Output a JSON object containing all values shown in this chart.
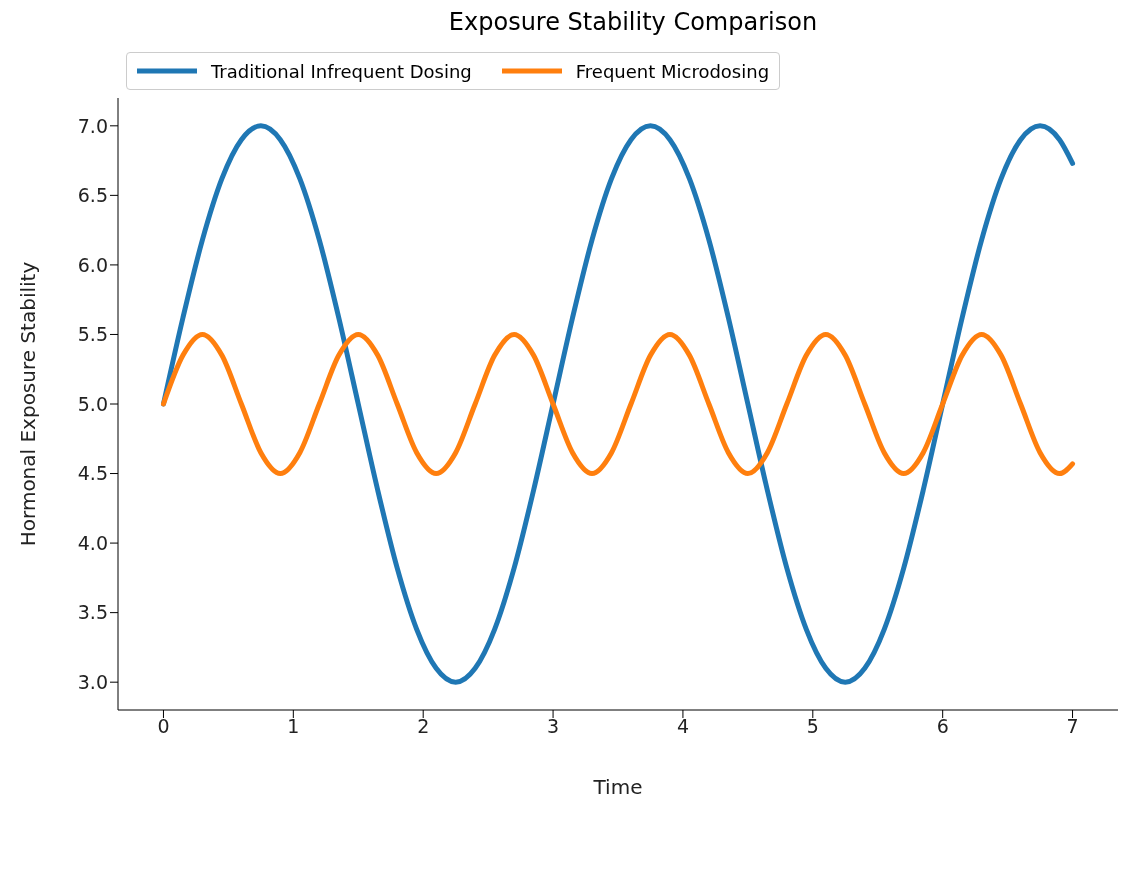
{
  "chart_data": {
    "type": "line",
    "title": "Exposure Stability Comparison",
    "xlabel": "Time",
    "ylabel": "Hormonal Exposure Stability",
    "x": [
      0,
      0.15,
      0.3,
      0.45,
      0.6,
      0.75,
      0.9,
      1.05,
      1.2,
      1.35,
      1.5,
      1.65,
      1.8,
      1.95,
      2.1,
      2.25,
      2.4,
      2.55,
      2.7,
      2.85,
      3,
      3.15,
      3.3,
      3.45,
      3.6,
      3.75,
      3.9,
      4.05,
      4.2,
      4.35,
      4.5,
      4.65,
      4.8,
      4.95,
      5.1,
      5.25,
      5.4,
      5.55,
      5.7,
      5.85,
      6,
      6.15,
      6.3,
      6.45,
      6.6,
      6.75,
      6.9,
      7
    ],
    "series": [
      {
        "name": "Traditional Infrequent Dosing",
        "color": "#1f77b4",
        "values": [
          5,
          5.62,
          6.18,
          6.62,
          6.9,
          7,
          6.9,
          6.62,
          6.18,
          5.62,
          5,
          4.38,
          3.82,
          3.38,
          3.1,
          3,
          3.1,
          3.38,
          3.82,
          4.38,
          5,
          5.62,
          6.18,
          6.62,
          6.9,
          7,
          6.9,
          6.62,
          6.18,
          5.62,
          5,
          4.38,
          3.82,
          3.38,
          3.1,
          3,
          3.1,
          3.38,
          3.82,
          4.38,
          5,
          5.62,
          6.18,
          6.62,
          6.9,
          7,
          6.9,
          6.73
        ]
      },
      {
        "name": "Frequent Microdosing",
        "color": "#ff7f0e",
        "values": [
          5,
          5.35,
          5.5,
          5.35,
          5,
          4.65,
          4.5,
          4.65,
          5,
          5.35,
          5.5,
          5.35,
          5,
          4.65,
          4.5,
          4.65,
          5,
          5.35,
          5.5,
          5.35,
          5,
          4.65,
          4.5,
          4.65,
          5,
          5.35,
          5.5,
          5.35,
          5,
          4.65,
          4.5,
          4.65,
          5,
          5.35,
          5.5,
          5.35,
          5,
          4.65,
          4.5,
          4.65,
          5,
          5.35,
          5.5,
          5.35,
          5,
          4.65,
          4.5,
          4.57
        ]
      }
    ],
    "xlim": [
      -0.35,
      7.35
    ],
    "xticks": [
      0,
      1,
      2,
      3,
      4,
      5,
      6,
      7
    ],
    "ylim": [
      2.8,
      7.2
    ],
    "yticks": [
      {
        "value": 3,
        "label": "3.0"
      },
      {
        "value": 3.5,
        "label": "3.5"
      },
      {
        "value": 4,
        "label": "4.0"
      },
      {
        "value": 4.5,
        "label": "4.5"
      },
      {
        "value": 5,
        "label": "5.0"
      },
      {
        "value": 5.5,
        "label": "5.5"
      },
      {
        "value": 6,
        "label": "6.0"
      },
      {
        "value": 6.5,
        "label": "6.5"
      },
      {
        "value": 7,
        "label": "7.0"
      }
    ],
    "grid": false,
    "legend": "top left",
    "marker": "none",
    "line_style": "solid"
  }
}
